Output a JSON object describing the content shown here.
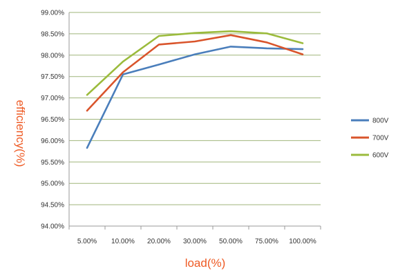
{
  "colors": {
    "axis_title": "#ee5a24",
    "grid": "#9fb57a",
    "axis": "#999999"
  },
  "chart_data": {
    "type": "line",
    "categories": [
      "5.00%",
      "10.00%",
      "20.00%",
      "30.00%",
      "50.00%",
      "75.00%",
      "100.00%"
    ],
    "series": [
      {
        "name": "800V",
        "color": "#4a7ebb",
        "values": [
          95.83,
          97.55,
          97.78,
          98.02,
          98.2,
          98.16,
          98.14
        ]
      },
      {
        "name": "700V",
        "color": "#d9542b",
        "values": [
          96.7,
          97.6,
          98.25,
          98.32,
          98.47,
          98.3,
          98.02
        ]
      },
      {
        "name": "600V",
        "color": "#9bbb3c",
        "values": [
          97.07,
          97.85,
          98.45,
          98.52,
          98.56,
          98.51,
          98.28
        ]
      }
    ],
    "ylim": [
      94.0,
      99.0
    ],
    "y_ticks": [
      "94.00%",
      "94.50%",
      "95.00%",
      "95.50%",
      "96.00%",
      "96.50%",
      "97.00%",
      "97.50%",
      "98.00%",
      "98.50%",
      "99.00%"
    ],
    "xlabel": "load(%)",
    "ylabel": "efficiency(%)",
    "grid": true,
    "legend_position": "right"
  }
}
